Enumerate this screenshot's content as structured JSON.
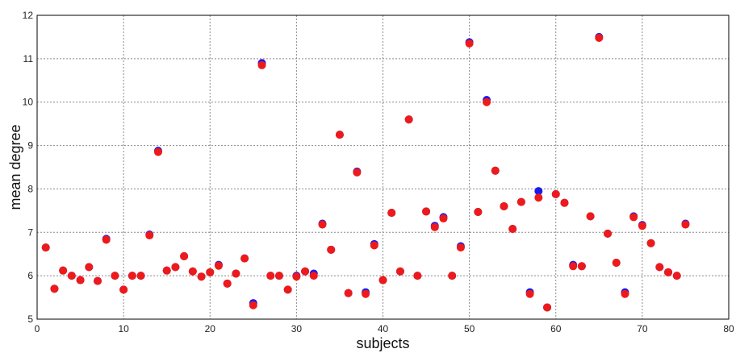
{
  "chart_data": {
    "type": "scatter",
    "xlabel": "subjects",
    "ylabel": "mean degree",
    "xlim": [
      0,
      80
    ],
    "ylim": [
      5,
      12
    ],
    "xticks": [
      "0",
      "10",
      "20",
      "30",
      "40",
      "50",
      "60",
      "70",
      "80"
    ],
    "yticks": [
      "5",
      "6",
      "7",
      "8",
      "9",
      "10",
      "11",
      "12"
    ],
    "grid": true,
    "legend": "none",
    "x": [
      1,
      2,
      3,
      4,
      5,
      6,
      7,
      8,
      9,
      10,
      11,
      12,
      13,
      14,
      15,
      16,
      17,
      18,
      19,
      20,
      21,
      22,
      23,
      24,
      25,
      26,
      27,
      28,
      29,
      30,
      31,
      32,
      33,
      34,
      35,
      36,
      37,
      38,
      39,
      40,
      41,
      42,
      43,
      44,
      45,
      46,
      47,
      48,
      49,
      50,
      51,
      52,
      53,
      54,
      55,
      56,
      57,
      58,
      59,
      60,
      61,
      62,
      63,
      64,
      65,
      66,
      67,
      68,
      69,
      70,
      71,
      72,
      73,
      74,
      75
    ],
    "series": [
      {
        "color": "#1a1aee",
        "values": [
          6.65,
          5.7,
          6.12,
          6.0,
          5.9,
          6.2,
          5.88,
          6.85,
          6.0,
          5.68,
          6.0,
          6.0,
          6.95,
          8.88,
          6.12,
          6.2,
          6.45,
          6.1,
          5.98,
          6.08,
          6.25,
          5.82,
          6.05,
          6.4,
          5.37,
          10.9,
          6.0,
          6.0,
          5.68,
          6.0,
          6.1,
          6.05,
          7.2,
          6.6,
          9.25,
          5.6,
          8.4,
          5.62,
          6.73,
          5.9,
          7.45,
          6.1,
          9.6,
          6.0,
          7.48,
          7.15,
          7.35,
          6.0,
          6.68,
          11.38,
          7.47,
          10.05,
          8.42,
          7.6,
          7.08,
          7.7,
          5.62,
          7.95,
          5.27,
          7.88,
          7.68,
          6.25,
          6.22,
          7.37,
          11.5,
          6.97,
          6.3,
          5.62,
          7.37,
          7.17,
          6.75,
          6.2,
          6.08,
          6.0,
          7.2
        ]
      },
      {
        "color": "#ee1a1a",
        "values": [
          6.65,
          5.7,
          6.12,
          6.0,
          5.9,
          6.2,
          5.88,
          6.83,
          6.0,
          5.68,
          6.0,
          6.0,
          6.93,
          8.85,
          6.12,
          6.2,
          6.45,
          6.1,
          5.98,
          6.08,
          6.23,
          5.82,
          6.05,
          6.4,
          5.32,
          10.85,
          6.0,
          6.0,
          5.68,
          5.98,
          6.1,
          6.0,
          7.18,
          6.6,
          9.25,
          5.6,
          8.38,
          5.58,
          6.7,
          5.9,
          7.45,
          6.1,
          9.6,
          6.0,
          7.48,
          7.12,
          7.32,
          6.0,
          6.65,
          11.35,
          7.47,
          10.0,
          8.42,
          7.6,
          7.08,
          7.7,
          5.58,
          7.8,
          5.27,
          7.88,
          7.68,
          6.22,
          6.22,
          7.37,
          11.48,
          6.97,
          6.3,
          5.58,
          7.35,
          7.15,
          6.75,
          6.2,
          6.08,
          6.0,
          7.18
        ]
      }
    ]
  }
}
